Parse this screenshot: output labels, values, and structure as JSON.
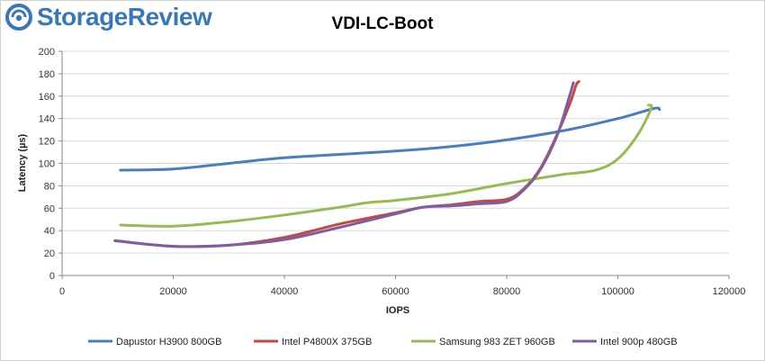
{
  "brand": {
    "name": "StorageReview",
    "color": "#3a78b5"
  },
  "chart_data": {
    "type": "line",
    "title": "VDI-LC-Boot",
    "xlabel": "IOPS",
    "ylabel": "Latency (µs)",
    "xlim": [
      0,
      120000
    ],
    "ylim": [
      0,
      200
    ],
    "xticks": [
      0,
      20000,
      40000,
      60000,
      80000,
      100000,
      120000
    ],
    "yticks": [
      0,
      20,
      40,
      60,
      80,
      100,
      120,
      140,
      160,
      180,
      200
    ],
    "grid": "horizontal",
    "legend_position": "bottom",
    "series": [
      {
        "name": "Dapustor H3900 800GB",
        "color": "#4a7ebb",
        "points": [
          [
            10500,
            94
          ],
          [
            20000,
            95
          ],
          [
            30000,
            100
          ],
          [
            40000,
            105
          ],
          [
            50000,
            108
          ],
          [
            60000,
            111
          ],
          [
            70000,
            115
          ],
          [
            80000,
            121
          ],
          [
            90000,
            129
          ],
          [
            100000,
            140
          ],
          [
            106500,
            149
          ],
          [
            107500,
            148
          ]
        ]
      },
      {
        "name": "Intel P4800X 375GB",
        "color": "#be4b48",
        "points": [
          [
            9500,
            31
          ],
          [
            20000,
            26
          ],
          [
            30000,
            27
          ],
          [
            40000,
            34
          ],
          [
            50000,
            46
          ],
          [
            60000,
            56
          ],
          [
            65000,
            61
          ],
          [
            70000,
            63
          ],
          [
            75000,
            66
          ],
          [
            80000,
            68
          ],
          [
            83000,
            77
          ],
          [
            86000,
            95
          ],
          [
            89000,
            125
          ],
          [
            91500,
            155
          ],
          [
            92500,
            170
          ],
          [
            93000,
            173
          ]
        ]
      },
      {
        "name": "Samsung 983 ZET 960GB",
        "color": "#98b954",
        "points": [
          [
            10500,
            45
          ],
          [
            20000,
            44
          ],
          [
            30000,
            48
          ],
          [
            40000,
            54
          ],
          [
            50000,
            61
          ],
          [
            55000,
            65
          ],
          [
            60000,
            67
          ],
          [
            70000,
            73
          ],
          [
            80000,
            82
          ],
          [
            90000,
            90
          ],
          [
            96000,
            94
          ],
          [
            100000,
            104
          ],
          [
            103500,
            125
          ],
          [
            106000,
            149
          ],
          [
            105500,
            152
          ]
        ]
      },
      {
        "name": "Intel 900p 480GB",
        "color": "#7d5fa0",
        "points": [
          [
            9500,
            31
          ],
          [
            20000,
            26
          ],
          [
            30000,
            27
          ],
          [
            40000,
            32
          ],
          [
            50000,
            43
          ],
          [
            60000,
            55
          ],
          [
            65000,
            61
          ],
          [
            70000,
            62
          ],
          [
            75000,
            64
          ],
          [
            80000,
            66
          ],
          [
            83000,
            76
          ],
          [
            86000,
            94
          ],
          [
            89000,
            124
          ],
          [
            91000,
            155
          ],
          [
            92000,
            172
          ]
        ]
      }
    ]
  }
}
